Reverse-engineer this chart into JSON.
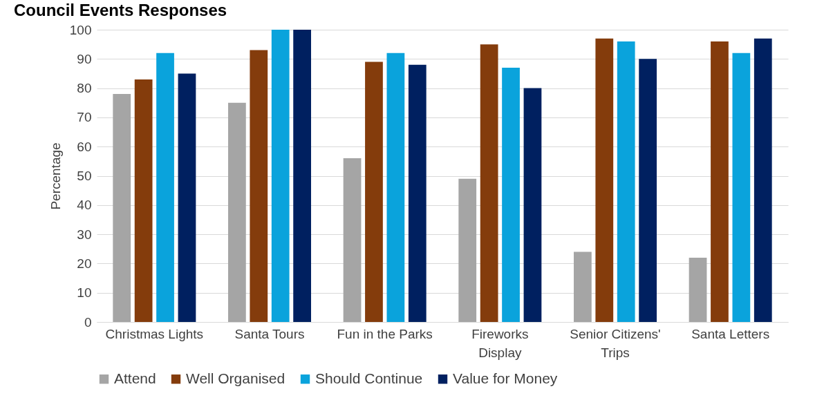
{
  "chart_data": {
    "type": "bar",
    "title": "Council Events Responses",
    "ylabel": "Percentage",
    "categories": [
      "Christmas Lights",
      "Santa Tours",
      "Fun in the Parks",
      "Fireworks Display",
      "Senior Citizens' Trips",
      "Santa Letters"
    ],
    "series": [
      {
        "name": "Attend",
        "color": "#a5a5a5",
        "values": [
          78,
          75,
          56,
          49,
          24,
          22
        ]
      },
      {
        "name": "Well Organised",
        "color": "#843c0c",
        "values": [
          83,
          93,
          89,
          95,
          97,
          96
        ]
      },
      {
        "name": "Should Continue",
        "color": "#0aa3dc",
        "values": [
          92,
          100,
          92,
          87,
          96,
          92
        ]
      },
      {
        "name": "Value for Money",
        "color": "#002060",
        "values": [
          85,
          100,
          88,
          80,
          90,
          97
        ]
      }
    ],
    "ylim": [
      0,
      100
    ],
    "yticks": [
      0,
      10,
      20,
      30,
      40,
      50,
      60,
      70,
      80,
      90,
      100
    ],
    "grid": "y",
    "legend": "bottom"
  }
}
